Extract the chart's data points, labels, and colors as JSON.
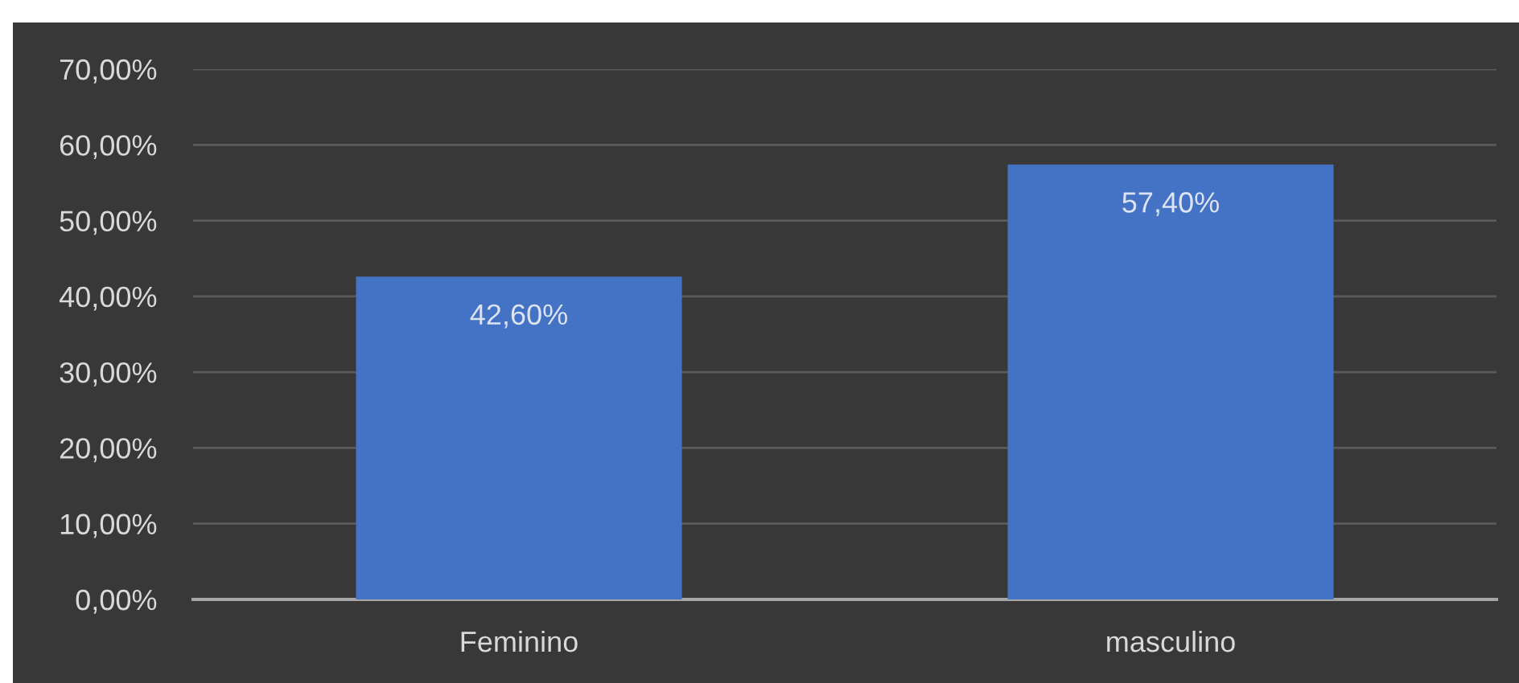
{
  "chart_data": {
    "type": "bar",
    "categories": [
      "Feminino",
      "masculino"
    ],
    "values": [
      42.6,
      57.4
    ],
    "value_labels": [
      "42,60%",
      "57,40%"
    ],
    "color": "#4472c4",
    "ylim": [
      0,
      70
    ],
    "yticks": [
      {
        "value": 0,
        "label": "0,00%"
      },
      {
        "value": 10,
        "label": "10,00%"
      },
      {
        "value": 20,
        "label": "20,00%"
      },
      {
        "value": 30,
        "label": "30,00%"
      },
      {
        "value": 40,
        "label": "40,00%"
      },
      {
        "value": 50,
        "label": "50,00%"
      },
      {
        "value": 60,
        "label": "60,00%"
      },
      {
        "value": 70,
        "label": "70,00%"
      }
    ],
    "grid": "y"
  }
}
